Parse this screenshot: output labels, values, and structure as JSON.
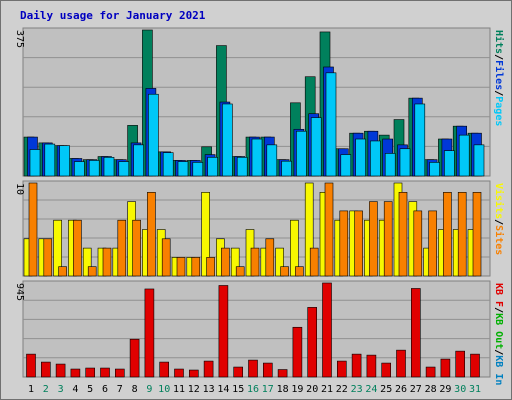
{
  "title": "Daily usage for January 2021",
  "colors": {
    "hits": "#00805c",
    "files": "#0038d8",
    "pages": "#00c8f8",
    "visits": "#f8f800",
    "sites": "#f88000",
    "kbin": "#0080c0",
    "kbout": "#00b000",
    "kb": "#e00000",
    "weekday_tick": "#000000",
    "weekend_tick": "#00805c"
  },
  "chart_data": [
    {
      "type": "bar",
      "name": "hits-files-pages",
      "scale_label": "375",
      "ylim": [
        0,
        375
      ],
      "legend": [
        {
          "label": "Hits",
          "color_key": "hits"
        },
        {
          "label": "/",
          "color_key": null
        },
        {
          "label": "Files",
          "color_key": "files"
        },
        {
          "label": "/",
          "color_key": null
        },
        {
          "label": "Pages",
          "color_key": "pages"
        }
      ],
      "series": [
        {
          "name": "Hits",
          "color_key": "hits",
          "values": [
            100,
            85,
            78,
            45,
            42,
            50,
            42,
            130,
            375,
            62,
            40,
            40,
            75,
            335,
            50,
            100,
            100,
            42,
            188,
            255,
            370,
            70,
            110,
            115,
            105,
            145,
            200,
            42,
            95,
            128,
            110
          ]
        },
        {
          "name": "Files",
          "color_key": "files",
          "values": [
            100,
            85,
            78,
            45,
            42,
            50,
            42,
            85,
            225,
            62,
            40,
            40,
            55,
            190,
            50,
            100,
            100,
            42,
            120,
            160,
            280,
            70,
            110,
            115,
            95,
            80,
            200,
            42,
            95,
            128,
            110
          ]
        },
        {
          "name": "Pages",
          "color_key": "pages",
          "values": [
            68,
            82,
            78,
            37,
            40,
            48,
            37,
            80,
            210,
            60,
            37,
            35,
            48,
            185,
            48,
            95,
            80,
            38,
            115,
            150,
            265,
            55,
            95,
            90,
            58,
            70,
            185,
            35,
            65,
            105,
            80
          ]
        }
      ]
    },
    {
      "type": "bar",
      "name": "visits-sites",
      "scale_label": "10",
      "ylim": [
        0,
        10
      ],
      "legend": [
        {
          "label": "Visits",
          "color_key": "visits"
        },
        {
          "label": "/",
          "color_key": null
        },
        {
          "label": "Sites",
          "color_key": "sites"
        }
      ],
      "series": [
        {
          "name": "Visits",
          "color_key": "visits",
          "values": [
            4,
            4,
            6,
            6,
            3,
            3,
            3,
            8,
            5,
            5,
            2,
            2,
            9,
            4,
            3,
            5,
            3,
            3,
            6,
            10,
            9,
            6,
            7,
            6,
            6,
            10,
            8,
            3,
            5,
            5,
            5
          ]
        },
        {
          "name": "Sites",
          "color_key": "sites",
          "values": [
            10,
            4,
            1,
            6,
            1,
            3,
            6,
            6,
            9,
            4,
            2,
            2,
            2,
            3,
            1,
            3,
            4,
            1,
            1,
            3,
            10,
            7,
            7,
            8,
            8,
            9,
            7,
            7,
            9,
            9,
            9
          ]
        }
      ]
    },
    {
      "type": "bar",
      "name": "kb",
      "scale_label": "945",
      "ylim": [
        0,
        945
      ],
      "legend": [
        {
          "label": "KB F",
          "color_key": "kb"
        },
        {
          "label": "/",
          "color_key": null
        },
        {
          "label": "KB Out",
          "color_key": "kbout"
        },
        {
          "label": "/",
          "color_key": null
        },
        {
          "label": "KB In",
          "color_key": "kbin"
        }
      ],
      "series": [
        {
          "name": "KB F",
          "color_key": "kb",
          "values": [
            230,
            150,
            130,
            80,
            90,
            90,
            80,
            380,
            885,
            150,
            80,
            70,
            160,
            920,
            100,
            170,
            140,
            75,
            500,
            700,
            950,
            160,
            230,
            220,
            140,
            270,
            890,
            100,
            180,
            260,
            230
          ]
        }
      ]
    }
  ],
  "x_axis": {
    "labels": [
      "1",
      "2",
      "3",
      "4",
      "5",
      "6",
      "7",
      "8",
      "9",
      "10",
      "11",
      "12",
      "13",
      "14",
      "15",
      "16",
      "17",
      "18",
      "19",
      "20",
      "21",
      "22",
      "23",
      "24",
      "25",
      "26",
      "27",
      "28",
      "29",
      "30",
      "31"
    ],
    "weekend_days": [
      2,
      3,
      9,
      10,
      16,
      17,
      23,
      24,
      30,
      31
    ]
  }
}
